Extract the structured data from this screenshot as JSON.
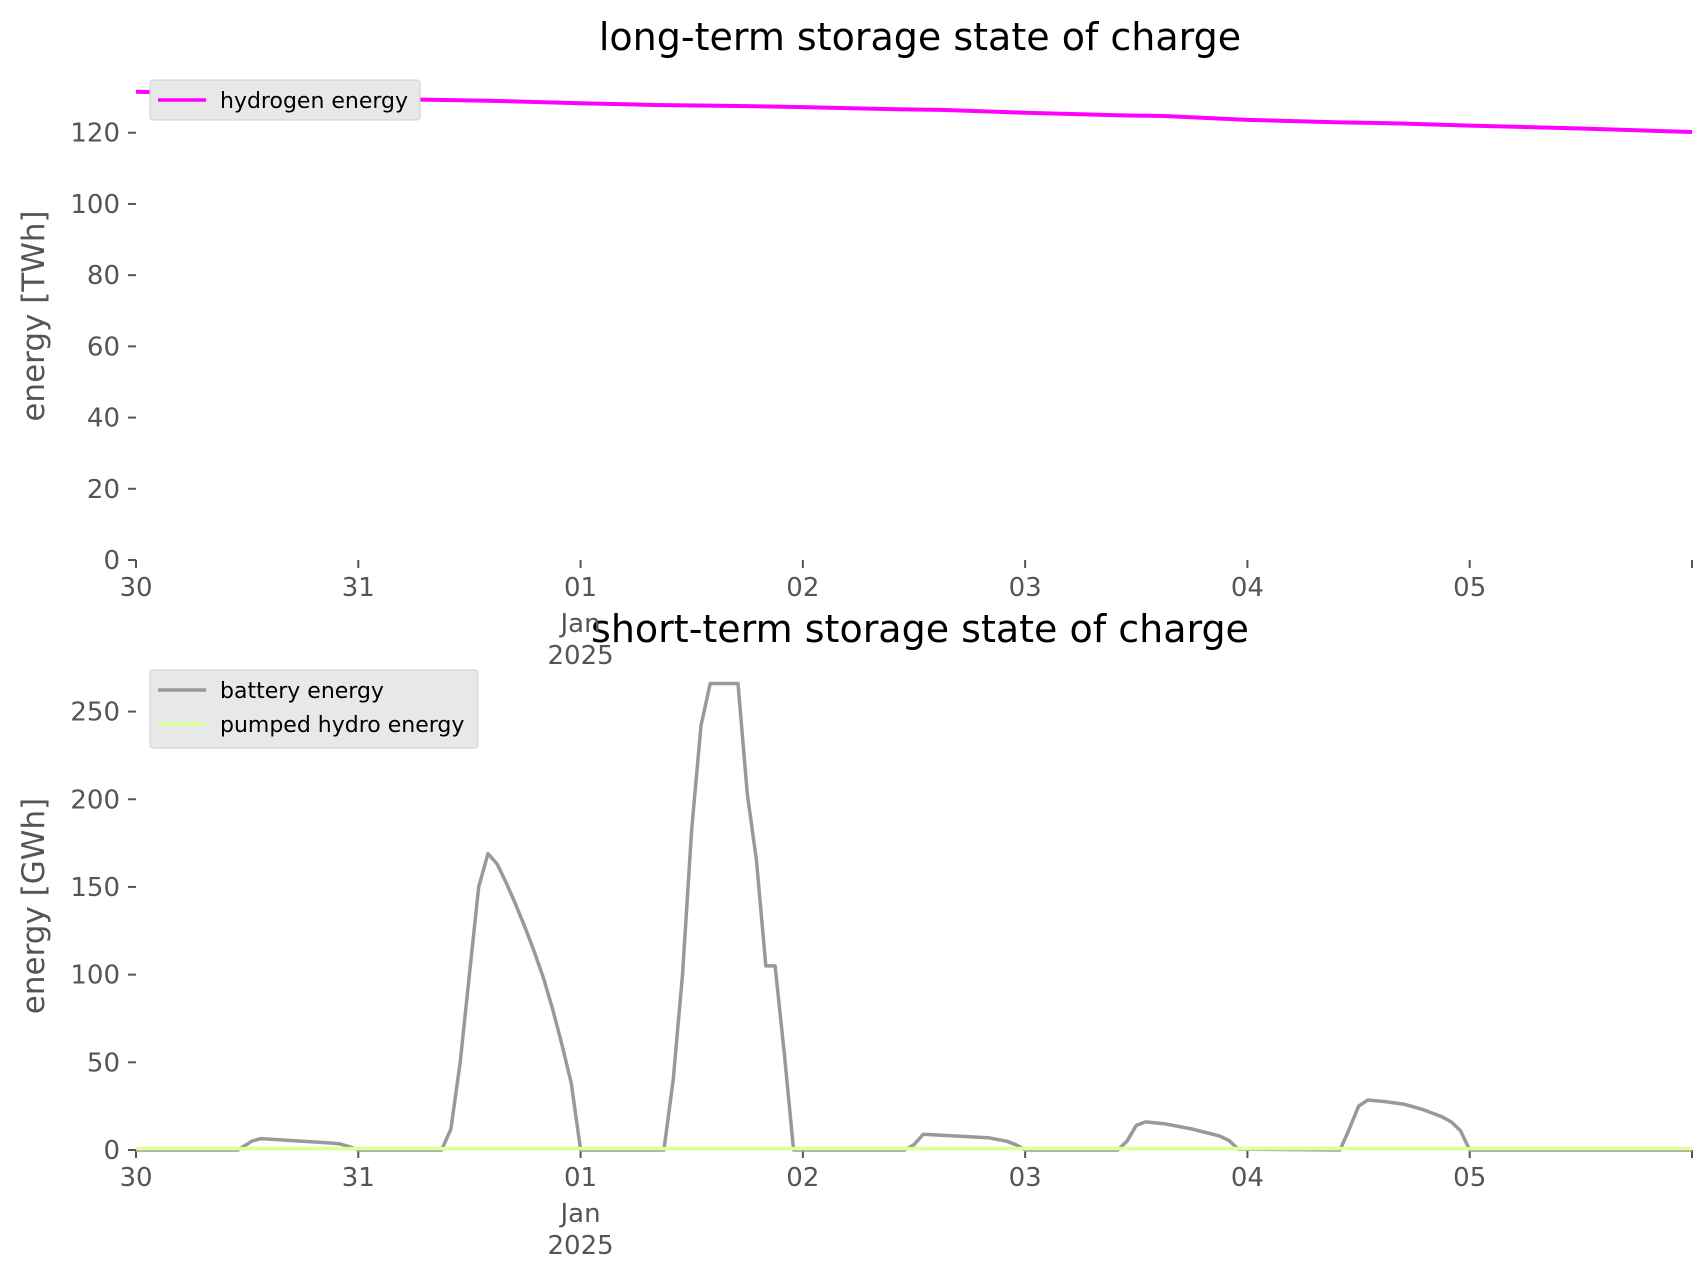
{
  "chart_data": [
    {
      "type": "line",
      "title": "long-term storage state of charge",
      "ylabel": "energy [TWh]",
      "xlabel": "",
      "x_range": [
        "2024-12-30",
        "2025-01-06"
      ],
      "ylim": [
        0,
        132
      ],
      "y_ticks": [
        0,
        20,
        40,
        60,
        80,
        100,
        120
      ],
      "x_ticks": [
        {
          "date": "2024-12-30",
          "label": "30",
          "sub": ""
        },
        {
          "date": "2024-12-31",
          "label": "31",
          "sub": ""
        },
        {
          "date": "2025-01-01",
          "label": "01",
          "sub": "Jan\n2025"
        },
        {
          "date": "2025-01-02",
          "label": "02",
          "sub": ""
        },
        {
          "date": "2025-01-03",
          "label": "03",
          "sub": ""
        },
        {
          "date": "2025-01-04",
          "label": "04",
          "sub": ""
        },
        {
          "date": "2025-01-05",
          "label": "05",
          "sub": ""
        },
        {
          "date": "2025-01-06",
          "label": "",
          "sub": ""
        }
      ],
      "grid": false,
      "legend_position": "upper-left",
      "series": [
        {
          "name": "hydrogen energy",
          "color": "#ff00ff",
          "points": [
            [
              "2024-12-30 00:00",
              131.5
            ],
            [
              "2024-12-30 12:00",
              130.8
            ],
            [
              "2024-12-31 00:00",
              129.6
            ],
            [
              "2024-12-31 14:00",
              129.0
            ],
            [
              "2025-01-01 00:00",
              128.3
            ],
            [
              "2025-01-01 08:00",
              127.8
            ],
            [
              "2025-01-01 15:00",
              127.6
            ],
            [
              "2025-01-02 00:00",
              127.2
            ],
            [
              "2025-01-02 10:00",
              126.6
            ],
            [
              "2025-01-02 15:00",
              126.4
            ],
            [
              "2025-01-03 00:00",
              125.6
            ],
            [
              "2025-01-03 10:00",
              124.9
            ],
            [
              "2025-01-03 15:00",
              124.7
            ],
            [
              "2025-01-04 00:00",
              123.6
            ],
            [
              "2025-01-04 10:00",
              122.9
            ],
            [
              "2025-01-04 15:00",
              122.7
            ],
            [
              "2025-01-05 00:00",
              122.0
            ],
            [
              "2025-01-05 12:00",
              121.2
            ],
            [
              "2025-01-06 00:00",
              120.2
            ]
          ]
        }
      ]
    },
    {
      "type": "line",
      "title": "short-term storage state of charge",
      "ylabel": "energy [GWh]",
      "xlabel": "",
      "x_range": [
        "2024-12-30",
        "2025-01-06"
      ],
      "ylim": [
        0,
        268
      ],
      "y_ticks": [
        0,
        50,
        100,
        150,
        200,
        250
      ],
      "x_ticks": [
        {
          "date": "2024-12-30",
          "label": "30",
          "sub": ""
        },
        {
          "date": "2024-12-31",
          "label": "31",
          "sub": ""
        },
        {
          "date": "2025-01-01",
          "label": "01",
          "sub": "Jan\n2025"
        },
        {
          "date": "2025-01-02",
          "label": "02",
          "sub": ""
        },
        {
          "date": "2025-01-03",
          "label": "03",
          "sub": ""
        },
        {
          "date": "2025-01-04",
          "label": "04",
          "sub": ""
        },
        {
          "date": "2025-01-05",
          "label": "05",
          "sub": ""
        },
        {
          "date": "2025-01-06",
          "label": "",
          "sub": ""
        }
      ],
      "grid": false,
      "legend_position": "upper-left",
      "series": [
        {
          "name": "battery energy",
          "color": "#999999",
          "points": [
            [
              "2024-12-30 00:00",
              0
            ],
            [
              "2024-12-30 11:00",
              0
            ],
            [
              "2024-12-30 12:30",
              5
            ],
            [
              "2024-12-30 13:30",
              6.5
            ],
            [
              "2024-12-30 21:00",
              4
            ],
            [
              "2024-12-30 22:00",
              3.5
            ],
            [
              "2024-12-30 23:00",
              2
            ],
            [
              "2024-12-31 00:00",
              0
            ],
            [
              "2024-12-31 09:00",
              0
            ],
            [
              "2024-12-31 10:00",
              12
            ],
            [
              "2024-12-31 11:00",
              50
            ],
            [
              "2024-12-31 12:00",
              100
            ],
            [
              "2024-12-31 13:00",
              150
            ],
            [
              "2024-12-31 14:00",
              169
            ],
            [
              "2024-12-31 15:00",
              163
            ],
            [
              "2024-12-31 16:00",
              152
            ],
            [
              "2024-12-31 17:00",
              140
            ],
            [
              "2024-12-31 18:00",
              127
            ],
            [
              "2024-12-31 19:00",
              113
            ],
            [
              "2024-12-31 20:00",
              98
            ],
            [
              "2024-12-31 21:00",
              80
            ],
            [
              "2024-12-31 22:00",
              60
            ],
            [
              "2024-12-31 23:00",
              38
            ],
            [
              "2025-01-01 00:00",
              0
            ],
            [
              "2025-01-01 09:00",
              0
            ],
            [
              "2025-01-01 10:00",
              40
            ],
            [
              "2025-01-01 11:00",
              100
            ],
            [
              "2025-01-01 12:00",
              183
            ],
            [
              "2025-01-01 13:00",
              242
            ],
            [
              "2025-01-01 14:00",
              266
            ],
            [
              "2025-01-01 17:00",
              266
            ],
            [
              "2025-01-01 18:00",
              203
            ],
            [
              "2025-01-01 19:00",
              165
            ],
            [
              "2025-01-01 20:00",
              105
            ],
            [
              "2025-01-01 21:00",
              105
            ],
            [
              "2025-01-01 22:00",
              55
            ],
            [
              "2025-01-01 23:00",
              0
            ],
            [
              "2025-01-02 11:00",
              0
            ],
            [
              "2025-01-02 12:00",
              3
            ],
            [
              "2025-01-02 13:00",
              9
            ],
            [
              "2025-01-02 20:00",
              7
            ],
            [
              "2025-01-02 22:00",
              5
            ],
            [
              "2025-01-02 23:00",
              3
            ],
            [
              "2025-01-03 00:00",
              0
            ],
            [
              "2025-01-03 10:00",
              0
            ],
            [
              "2025-01-03 11:00",
              5
            ],
            [
              "2025-01-03 12:00",
              14
            ],
            [
              "2025-01-03 13:00",
              16
            ],
            [
              "2025-01-03 15:00",
              15
            ],
            [
              "2025-01-03 18:00",
              12
            ],
            [
              "2025-01-03 21:00",
              8
            ],
            [
              "2025-01-03 22:00",
              5.5
            ],
            [
              "2025-01-03 23:00",
              0.5
            ],
            [
              "2025-01-04 10:00",
              0
            ],
            [
              "2025-01-04 11:00",
              12
            ],
            [
              "2025-01-04 12:00",
              25
            ],
            [
              "2025-01-04 13:00",
              28.5
            ],
            [
              "2025-01-04 15:00",
              27.5
            ],
            [
              "2025-01-04 17:00",
              26
            ],
            [
              "2025-01-04 19:00",
              23
            ],
            [
              "2025-01-04 21:00",
              19
            ],
            [
              "2025-01-04 22:00",
              16
            ],
            [
              "2025-01-04 23:00",
              11
            ],
            [
              "2025-01-05 00:00",
              0
            ],
            [
              "2025-01-06 00:00",
              0
            ]
          ]
        },
        {
          "name": "pumped hydro energy",
          "color": "#e0ff9a",
          "points": [
            [
              "2024-12-30 00:00",
              0.8
            ],
            [
              "2025-01-06 00:00",
              0.8
            ]
          ]
        }
      ]
    }
  ]
}
